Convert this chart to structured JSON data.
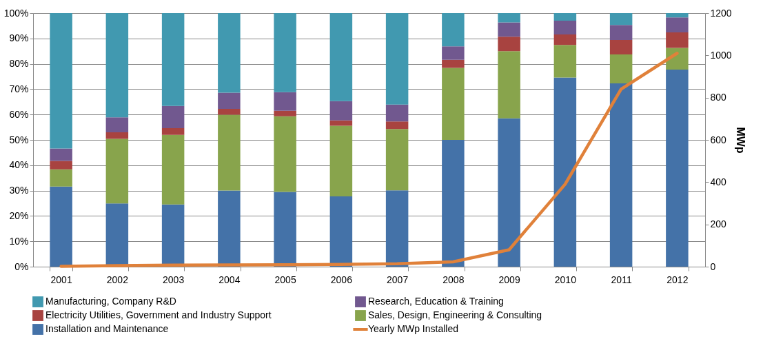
{
  "chart_data": {
    "type": "bar",
    "stacked": true,
    "categories": [
      "2001",
      "2002",
      "2003",
      "2004",
      "2005",
      "2006",
      "2007",
      "2008",
      "2009",
      "2010",
      "2011",
      "2012"
    ],
    "y2label": "MWp",
    "ylim": [
      0,
      100
    ],
    "yticks": [
      {
        "value": 0,
        "label": "0%"
      },
      {
        "value": 10,
        "label": "10%"
      },
      {
        "value": 20,
        "label": "20%"
      },
      {
        "value": 30,
        "label": "30%"
      },
      {
        "value": 40,
        "label": "40%"
      },
      {
        "value": 50,
        "label": "50%"
      },
      {
        "value": 60,
        "label": "60%"
      },
      {
        "value": 70,
        "label": "70%"
      },
      {
        "value": 80,
        "label": "80%"
      },
      {
        "value": 90,
        "label": "90%"
      },
      {
        "value": 100,
        "label": "100%"
      }
    ],
    "y2lim": [
      0,
      1200
    ],
    "y2ticks": [
      0,
      200,
      400,
      600,
      800,
      1000,
      1200
    ],
    "grid": "y",
    "legend": "bottom",
    "series": [
      {
        "name": "Installation and Maintenance",
        "color": "#4472a8",
        "values": [
          31.6,
          24.9,
          24.5,
          30.0,
          29.5,
          27.7,
          30.1,
          50.0,
          58.5,
          74.6,
          72.3,
          77.7
        ]
      },
      {
        "name": "Sales, Design, Engineering & Consulting",
        "color": "#88a44c",
        "values": [
          6.8,
          25.5,
          27.5,
          29.9,
          29.8,
          27.9,
          24.2,
          28.4,
          26.5,
          12.8,
          11.4,
          8.6
        ]
      },
      {
        "name": "Electricity Utilities, Government and Industry Support",
        "color": "#a84340",
        "values": [
          3.3,
          2.6,
          2.6,
          2.3,
          2.2,
          2.1,
          3.0,
          3.2,
          5.7,
          4.2,
          5.7,
          6.1
        ]
      },
      {
        "name": "Research,  Education & Training",
        "color": "#71588f",
        "values": [
          4.9,
          5.9,
          8.8,
          6.4,
          7.3,
          7.6,
          6.6,
          5.3,
          5.6,
          5.4,
          5.9,
          5.9
        ]
      },
      {
        "name": "Manufacturing, Company R&D",
        "color": "#4199b0",
        "values": [
          53.4,
          41.1,
          36.6,
          31.4,
          31.2,
          34.7,
          36.1,
          13.1,
          3.7,
          3.0,
          4.7,
          1.7
        ]
      },
      {
        "name": "Yearly MWp Installed",
        "type": "line",
        "axis": "y2",
        "color": "#e0813a",
        "values": [
          2,
          5,
          7,
          8,
          9,
          11,
          14,
          23,
          80,
          390,
          840,
          1010
        ]
      }
    ]
  }
}
